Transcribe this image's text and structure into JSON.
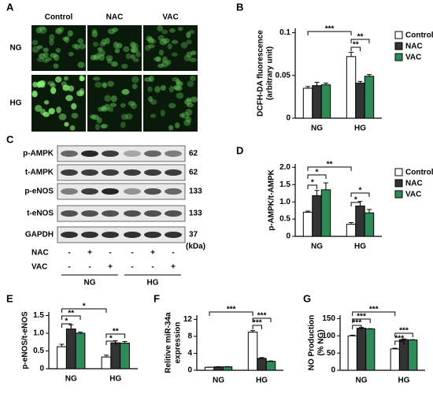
{
  "panel_labels": [
    "A",
    "B",
    "C",
    "D",
    "E",
    "F",
    "G"
  ],
  "panel_a": {
    "columns": [
      "Control",
      "NAC",
      "VAC"
    ],
    "rows": [
      "NG",
      "HG"
    ]
  },
  "panel_c": {
    "proteins": [
      {
        "name": "p-AMPK",
        "kda": 62
      },
      {
        "name": "t-AMPK",
        "kda": 62
      },
      {
        "name": "p-eNOS",
        "kda": 133
      },
      {
        "name": "t-eNOS",
        "kda": 133
      },
      {
        "name": "GAPDH",
        "kda": 37
      }
    ],
    "unit": "(kDa)",
    "treatments": [
      {
        "name": "NAC",
        "marks": [
          "-",
          "+",
          "-",
          "-",
          "+",
          "-"
        ]
      },
      {
        "name": "VAC",
        "marks": [
          "-",
          "-",
          "+",
          "-",
          "-",
          "+"
        ]
      }
    ],
    "groups": [
      "NG",
      "HG"
    ]
  },
  "chart_data": [
    {
      "type": "bar",
      "ylabel": [
        "DCFH-DA fluorescence",
        "(arbitrary unit)"
      ],
      "categories": [
        "NG",
        "HG"
      ],
      "series": [
        {
          "name": "Control",
          "color": "#ffffff",
          "values": [
            0.035,
            0.072
          ],
          "errors": [
            0.002,
            0.005
          ]
        },
        {
          "name": "NAC",
          "color": "#333333",
          "values": [
            0.038,
            0.041
          ],
          "errors": [
            0.004,
            0.002
          ]
        },
        {
          "name": "VAC",
          "color": "#2e8b57",
          "values": [
            0.039,
            0.049
          ],
          "errors": [
            0.002,
            0.002
          ]
        }
      ],
      "ylim": [
        0,
        0.105
      ],
      "yticks": [
        0,
        0.05,
        0.1
      ],
      "legend": true,
      "annotations": [
        "***",
        "**",
        "**"
      ]
    },
    {
      "type": "bar",
      "ylabel": [
        "p-AMPK/t-AMPK"
      ],
      "categories": [
        "NG",
        "HG"
      ],
      "series": [
        {
          "name": "Control",
          "color": "#ffffff",
          "values": [
            0.7,
            0.35
          ],
          "errors": [
            0.03,
            0.05
          ]
        },
        {
          "name": "NAC",
          "color": "#333333",
          "values": [
            1.18,
            0.88
          ],
          "errors": [
            0.15,
            0.13
          ]
        },
        {
          "name": "VAC",
          "color": "#2e8b57",
          "values": [
            1.35,
            0.68
          ],
          "errors": [
            0.2,
            0.1
          ]
        }
      ],
      "ylim": [
        0,
        2.1
      ],
      "yticks": [
        0,
        0.5,
        {
          "value": 1,
          "label": "1.0"
        },
        1.5,
        {
          "value": 2,
          "label": "2.0"
        }
      ],
      "legend": true,
      "annotations": [
        "**",
        "*",
        "*",
        "*",
        "*"
      ]
    },
    {
      "type": "bar",
      "ylabel": [
        "p-eNOS/t-eNOS"
      ],
      "categories": [
        "NG",
        "HG"
      ],
      "series": [
        {
          "name": "Control",
          "color": "#ffffff",
          "values": [
            0.62,
            0.33
          ],
          "errors": [
            0.07,
            0.05
          ]
        },
        {
          "name": "NAC",
          "color": "#333333",
          "values": [
            1.12,
            0.73
          ],
          "errors": [
            0.12,
            0.06
          ]
        },
        {
          "name": "VAC",
          "color": "#2e8b57",
          "values": [
            1.0,
            0.72
          ],
          "errors": [
            0.03,
            0.05
          ]
        }
      ],
      "ylim": [
        0,
        1.6
      ],
      "yticks": [
        0,
        0.5,
        {
          "value": 1,
          "label": "1.0"
        },
        1.5
      ],
      "legend": false,
      "annotations": [
        "*",
        "**",
        "*",
        "*",
        "**"
      ]
    },
    {
      "type": "bar",
      "ylabel": [
        "Relitive miR-34a",
        "expression"
      ],
      "categories": [
        "NG",
        "HG"
      ],
      "series": [
        {
          "name": "Control",
          "color": "#ffffff",
          "values": [
            0.7,
            9.0
          ],
          "errors": [
            0.05,
            0.35
          ]
        },
        {
          "name": "NAC",
          "color": "#333333",
          "values": [
            0.8,
            2.8
          ],
          "errors": [
            0.05,
            0.2
          ]
        },
        {
          "name": "VAC",
          "color": "#2e8b57",
          "values": [
            0.8,
            2.1
          ],
          "errors": [
            0.05,
            0.1
          ]
        }
      ],
      "ylim": [
        0,
        13
      ],
      "yticks": [
        0,
        4,
        8,
        12
      ],
      "legend": false,
      "annotations": [
        "***",
        "***",
        "***"
      ]
    },
    {
      "type": "bar",
      "ylabel": [
        "NO Production",
        "(% NG)"
      ],
      "categories": [
        "NG",
        "HG"
      ],
      "series": [
        {
          "name": "Control",
          "color": "#ffffff",
          "values": [
            100,
            62
          ],
          "errors": [
            2,
            2
          ]
        },
        {
          "name": "NAC",
          "color": "#333333",
          "values": [
            122,
            89
          ],
          "errors": [
            2,
            2
          ]
        },
        {
          "name": "VAC",
          "color": "#2e8b57",
          "values": [
            120,
            88
          ],
          "errors": [
            1,
            1
          ]
        }
      ],
      "ylim": [
        0,
        160
      ],
      "yticks": [
        0,
        50,
        100,
        150
      ],
      "legend": false,
      "annotations": [
        "***",
        "***",
        "***",
        "***",
        "***"
      ]
    }
  ]
}
